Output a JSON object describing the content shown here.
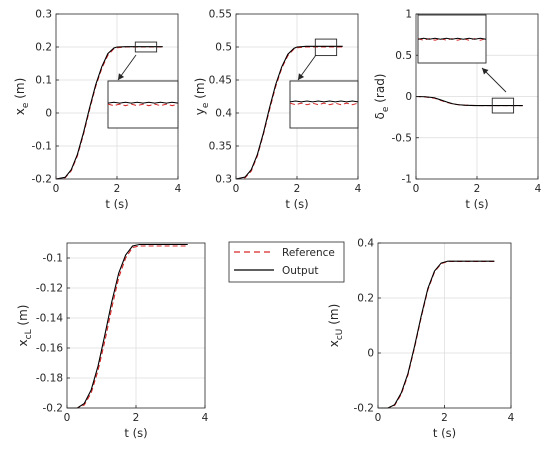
{
  "colors": {
    "output": "#000000",
    "reference": "#d62728",
    "grid": "#dcdcdc",
    "axis": "#262626"
  },
  "legend": {
    "reference_label": "Reference",
    "output_label": "Output"
  },
  "chart_data": [
    {
      "type": "line",
      "id": "xe",
      "ylabel_main": "x",
      "ylabel_sub": "e",
      "ylabel_unit": " (m)",
      "xlabel": "t (s)",
      "xlim": [
        0,
        4
      ],
      "ylim": [
        -0.2,
        0.3
      ],
      "xticks": [
        0,
        2,
        4
      ],
      "xtick_labels": [
        "0",
        "2",
        "4"
      ],
      "yticks": [
        -0.2,
        -0.1,
        0,
        0.1,
        0.2,
        0.3
      ],
      "ytick_labels": [
        "-0.2",
        "-0.1",
        "0",
        "0.1",
        "0.2",
        "0.3"
      ],
      "grid": true,
      "series": [
        {
          "name": "Reference",
          "style": "dashed",
          "x": [
            0,
            0.3,
            0.5,
            0.7,
            0.9,
            1.1,
            1.3,
            1.5,
            1.7,
            1.9,
            2.0,
            2.3,
            2.7,
            3.0,
            3.5
          ],
          "y": [
            -0.2,
            -0.196,
            -0.175,
            -0.13,
            -0.065,
            0.01,
            0.08,
            0.135,
            0.175,
            0.195,
            0.198,
            0.2,
            0.2,
            0.2,
            0.2
          ]
        },
        {
          "name": "Output",
          "style": "solid",
          "x": [
            0,
            0.3,
            0.5,
            0.7,
            0.9,
            1.1,
            1.3,
            1.5,
            1.7,
            1.9,
            2.0,
            2.3,
            2.7,
            3.0,
            3.5
          ],
          "y": [
            -0.2,
            -0.195,
            -0.172,
            -0.126,
            -0.06,
            0.015,
            0.085,
            0.14,
            0.18,
            0.197,
            0.2,
            0.201,
            0.201,
            0.201,
            0.201
          ]
        }
      ],
      "zoom_box": {
        "x": [
          2.6,
          3.3
        ],
        "y": [
          0.185,
          0.215
        ]
      }
    },
    {
      "type": "line",
      "id": "ye",
      "ylabel_main": "y",
      "ylabel_sub": "e",
      "ylabel_unit": " (m)",
      "xlabel": "t (s)",
      "xlim": [
        0,
        4
      ],
      "ylim": [
        0.3,
        0.55
      ],
      "xticks": [
        0,
        2,
        4
      ],
      "xtick_labels": [
        "0",
        "2",
        "4"
      ],
      "yticks": [
        0.3,
        0.35,
        0.4,
        0.45,
        0.5,
        0.55
      ],
      "ytick_labels": [
        "0.3",
        "0.35",
        "0.4",
        "0.45",
        "0.5",
        "0.55"
      ],
      "grid": true,
      "series": [
        {
          "name": "Reference",
          "style": "dashed",
          "x": [
            0,
            0.3,
            0.5,
            0.7,
            0.9,
            1.1,
            1.3,
            1.5,
            1.7,
            1.9,
            2.0,
            2.3,
            2.7,
            3.0,
            3.5
          ],
          "y": [
            0.3,
            0.302,
            0.312,
            0.335,
            0.368,
            0.405,
            0.44,
            0.468,
            0.487,
            0.497,
            0.499,
            0.5,
            0.5,
            0.5,
            0.5
          ]
        },
        {
          "name": "Output",
          "style": "solid",
          "x": [
            0,
            0.3,
            0.5,
            0.7,
            0.9,
            1.1,
            1.3,
            1.5,
            1.7,
            1.9,
            2.0,
            2.3,
            2.7,
            3.0,
            3.5
          ],
          "y": [
            0.3,
            0.303,
            0.314,
            0.337,
            0.37,
            0.408,
            0.443,
            0.47,
            0.489,
            0.498,
            0.5,
            0.501,
            0.501,
            0.501,
            0.501
          ]
        }
      ],
      "zoom_box": {
        "x": [
          2.6,
          3.3
        ],
        "y": [
          0.487,
          0.512
        ]
      }
    },
    {
      "type": "line",
      "id": "de",
      "ylabel_main": "δ",
      "ylabel_sub": "e",
      "ylabel_unit": " (rad)",
      "xlabel": "t (s)",
      "xlim": [
        0,
        4
      ],
      "ylim": [
        -1,
        1
      ],
      "xticks": [
        0,
        2,
        4
      ],
      "xtick_labels": [
        "0",
        "2",
        "4"
      ],
      "yticks": [
        -1,
        -0.5,
        0,
        0.5,
        1
      ],
      "ytick_labels": [
        "-1",
        "-0.5",
        "0",
        "0.5",
        "1"
      ],
      "grid": true,
      "series": [
        {
          "name": "Reference",
          "style": "dashed",
          "x": [
            0,
            0.3,
            0.6,
            0.8,
            1.0,
            1.2,
            1.4,
            1.6,
            1.8,
            2.0,
            2.3,
            2.7,
            3.0,
            3.5
          ],
          "y": [
            0,
            -0.005,
            -0.02,
            -0.045,
            -0.07,
            -0.09,
            -0.1,
            -0.105,
            -0.108,
            -0.11,
            -0.11,
            -0.11,
            -0.11,
            -0.11
          ]
        },
        {
          "name": "Output",
          "style": "solid",
          "x": [
            0,
            0.3,
            0.6,
            0.8,
            1.0,
            1.2,
            1.4,
            1.6,
            1.8,
            2.0,
            2.3,
            2.7,
            3.0,
            3.5
          ],
          "y": [
            0,
            -0.003,
            -0.015,
            -0.04,
            -0.065,
            -0.088,
            -0.1,
            -0.105,
            -0.108,
            -0.11,
            -0.11,
            -0.11,
            -0.11,
            -0.11
          ]
        }
      ],
      "zoom_box": {
        "x": [
          2.5,
          3.2
        ],
        "y": [
          -0.2,
          -0.02
        ]
      }
    },
    {
      "type": "line",
      "id": "xcl",
      "ylabel_main": "x",
      "ylabel_sub": "cL",
      "ylabel_unit": " (m)",
      "xlabel": "t (s)",
      "xlim": [
        0,
        4
      ],
      "ylim": [
        -0.2,
        -0.09
      ],
      "xticks": [
        0,
        2,
        4
      ],
      "xtick_labels": [
        "0",
        "2",
        "4"
      ],
      "yticks": [
        -0.2,
        -0.18,
        -0.16,
        -0.14,
        -0.12,
        -0.1
      ],
      "ytick_labels": [
        "-0.2",
        "-0.18",
        "-0.16",
        "-0.14",
        "-0.12",
        "-0.1"
      ],
      "grid": true,
      "series": [
        {
          "name": "Reference",
          "style": "dashed",
          "x": [
            0,
            0.3,
            0.5,
            0.7,
            0.9,
            1.1,
            1.3,
            1.5,
            1.7,
            1.9,
            2.1,
            2.4,
            3.0,
            3.5
          ],
          "y": [
            -0.2,
            -0.2,
            -0.198,
            -0.19,
            -0.175,
            -0.155,
            -0.133,
            -0.113,
            -0.1,
            -0.093,
            -0.092,
            -0.092,
            -0.092,
            -0.092
          ]
        },
        {
          "name": "Output",
          "style": "solid",
          "x": [
            0,
            0.3,
            0.5,
            0.7,
            0.9,
            1.1,
            1.3,
            1.5,
            1.7,
            1.9,
            2.1,
            2.4,
            3.0,
            3.5
          ],
          "y": [
            -0.2,
            -0.2,
            -0.197,
            -0.188,
            -0.172,
            -0.151,
            -0.129,
            -0.11,
            -0.098,
            -0.092,
            -0.091,
            -0.091,
            -0.091,
            -0.091
          ]
        }
      ]
    },
    {
      "type": "line",
      "id": "xcu",
      "ylabel_main": "x",
      "ylabel_sub": "cU",
      "ylabel_unit": " (m)",
      "xlabel": "t (s)",
      "xlim": [
        0,
        4
      ],
      "ylim": [
        -0.2,
        0.4
      ],
      "xticks": [
        0,
        2,
        4
      ],
      "xtick_labels": [
        "0",
        "2",
        "4"
      ],
      "yticks": [
        -0.2,
        0,
        0.2,
        0.4
      ],
      "ytick_labels": [
        "-0.2",
        "0",
        "0.2",
        "0.4"
      ],
      "grid": true,
      "series": [
        {
          "name": "Reference",
          "style": "dashed",
          "x": [
            0,
            0.3,
            0.5,
            0.7,
            0.9,
            1.1,
            1.3,
            1.5,
            1.7,
            1.9,
            2.1,
            2.4,
            3.0,
            3.5
          ],
          "y": [
            -0.2,
            -0.2,
            -0.19,
            -0.15,
            -0.08,
            0.02,
            0.13,
            0.23,
            0.295,
            0.325,
            0.333,
            0.333,
            0.333,
            0.333
          ]
        },
        {
          "name": "Output",
          "style": "solid",
          "x": [
            0,
            0.3,
            0.5,
            0.7,
            0.9,
            1.1,
            1.3,
            1.5,
            1.7,
            1.9,
            2.1,
            2.4,
            3.0,
            3.5
          ],
          "y": [
            -0.2,
            -0.2,
            -0.188,
            -0.145,
            -0.075,
            0.025,
            0.135,
            0.235,
            0.298,
            0.327,
            0.334,
            0.334,
            0.334,
            0.334
          ]
        }
      ]
    }
  ]
}
